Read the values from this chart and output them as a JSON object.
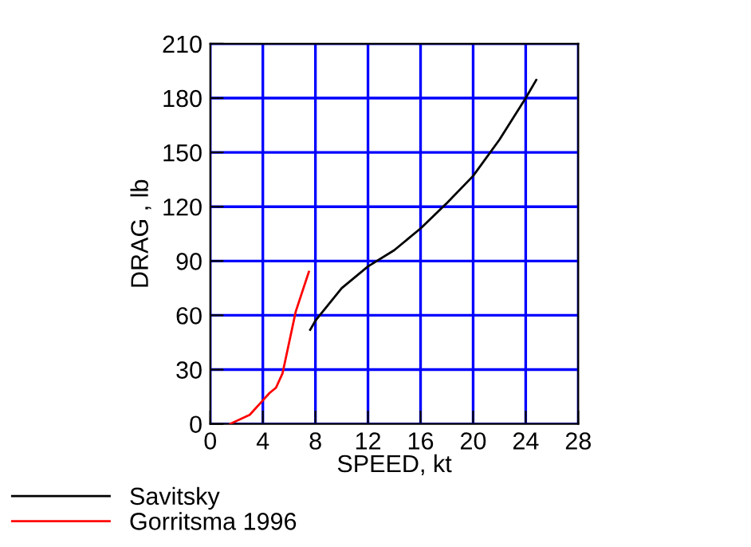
{
  "chart_data": {
    "type": "line",
    "xlabel": "SPEED, kt",
    "ylabel": "DRAG , lb",
    "xlim": [
      0,
      28
    ],
    "xticks": [
      0,
      4,
      8,
      12,
      16,
      20,
      24,
      28
    ],
    "ylim": [
      0,
      210
    ],
    "yticks": [
      0,
      30,
      60,
      90,
      120,
      150,
      180,
      210
    ],
    "grid": true,
    "legend": "bottom left",
    "line_style": "solid",
    "marker": "none",
    "series": [
      {
        "name": "Savitsky",
        "color": "#000000",
        "x": [
          7.6,
          8,
          10,
          12,
          14,
          16,
          18,
          20,
          22,
          24,
          24.8
        ],
        "values": [
          52,
          57,
          75,
          87,
          96,
          108,
          122,
          137,
          157,
          180,
          190
        ]
      },
      {
        "name": "Gorritsma 1996",
        "color": "#ff0000",
        "x": [
          1.5,
          3,
          4,
          4.5,
          5,
          5.5,
          6,
          6.5,
          7,
          7.5
        ],
        "values": [
          0,
          5,
          13,
          17,
          20,
          28,
          45,
          62,
          73,
          84
        ]
      }
    ]
  }
}
